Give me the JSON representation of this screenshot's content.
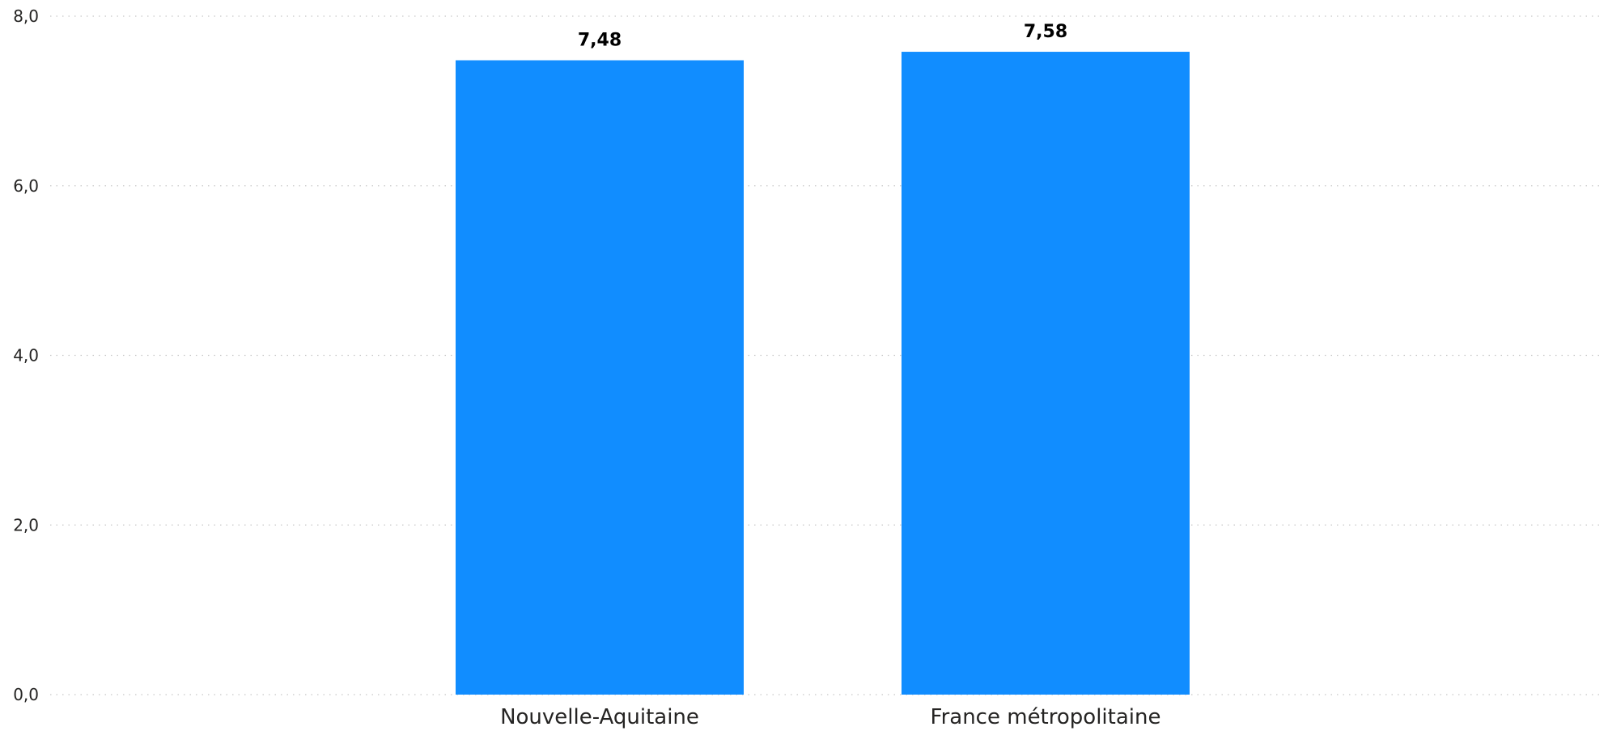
{
  "chart_data": {
    "type": "bar",
    "categories": [
      "Nouvelle-Aquitaine",
      "France métropolitaine"
    ],
    "values": [
      7.48,
      7.58
    ],
    "data_labels": [
      "7,48",
      "7,58"
    ],
    "title": "",
    "xlabel": "",
    "ylabel": "",
    "ylim": [
      0,
      8
    ],
    "yticks": [
      0,
      2,
      4,
      6,
      8
    ],
    "ytick_labels": [
      "0,0",
      "2,0",
      "4,0",
      "6,0",
      "8,0"
    ],
    "grid": true,
    "bar_color": "#118dff"
  }
}
